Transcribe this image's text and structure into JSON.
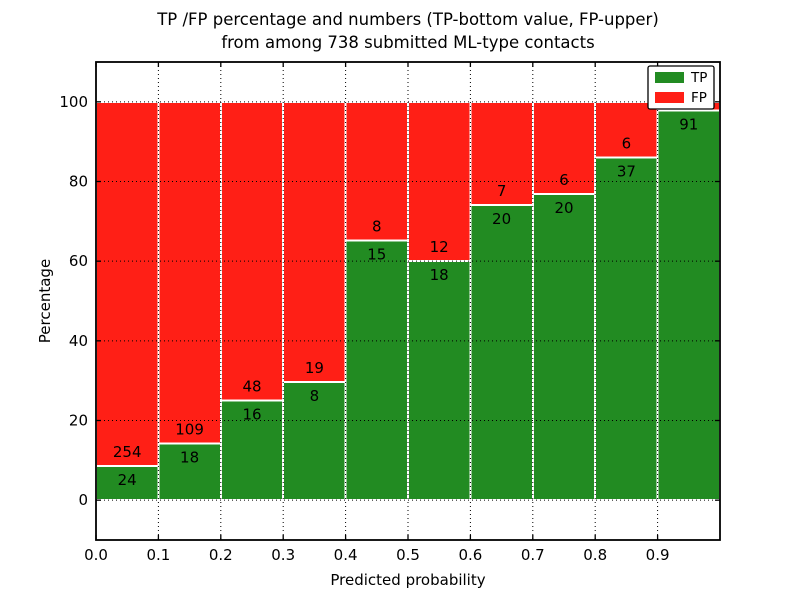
{
  "title": {
    "line1": "TP /FP percentage and numbers (TP-bottom value, FP-upper)",
    "line2": "from among 738 submitted ML-type contacts"
  },
  "chart_data": {
    "type": "bar",
    "stacked": true,
    "title": "TP /FP percentage and numbers (TP-bottom value, FP-upper)\nfrom among 738 submitted ML-type contacts",
    "xlabel": "Predicted probability",
    "ylabel": "Percentage",
    "xlim": [
      0.0,
      1.0
    ],
    "ylim": [
      -10,
      110
    ],
    "xticks": [
      0.0,
      0.1,
      0.2,
      0.3,
      0.4,
      0.5,
      0.6,
      0.7,
      0.8,
      0.9
    ],
    "xtick_labels": [
      "0.0",
      "0.1",
      "0.2",
      "0.3",
      "0.4",
      "0.5",
      "0.6",
      "0.7",
      "0.8",
      "0.9"
    ],
    "yticks": [
      0,
      20,
      40,
      60,
      80,
      100
    ],
    "ytick_labels": [
      "0",
      "20",
      "40",
      "60",
      "80",
      "100"
    ],
    "grid": "dotted",
    "bar_width": 0.1,
    "total_contacts": 738,
    "colors": {
      "tp": "#228b22",
      "fp": "#ff1f16",
      "bar_edge": "#ffffff",
      "grid": "#000000",
      "frame": "#000000",
      "text": "#000000",
      "legend_bg": "#ffffff"
    },
    "legend": {
      "position": "upper-right",
      "entries": [
        {
          "label": "TP",
          "color_key": "tp"
        },
        {
          "label": "FP",
          "color_key": "fp"
        }
      ]
    },
    "bars": [
      {
        "x_start": 0.0,
        "tp": 24,
        "fp": 254
      },
      {
        "x_start": 0.1,
        "tp": 18,
        "fp": 109
      },
      {
        "x_start": 0.2,
        "tp": 16,
        "fp": 48
      },
      {
        "x_start": 0.3,
        "tp": 8,
        "fp": 19
      },
      {
        "x_start": 0.4,
        "tp": 15,
        "fp": 8
      },
      {
        "x_start": 0.5,
        "tp": 18,
        "fp": 12
      },
      {
        "x_start": 0.6,
        "tp": 20,
        "fp": 7
      },
      {
        "x_start": 0.7,
        "tp": 20,
        "fp": 6
      },
      {
        "x_start": 0.8,
        "tp": 37,
        "fp": 6,
        "fp_label_hidden": false
      },
      {
        "x_start": 0.9,
        "tp": 91,
        "fp": 2,
        "fp_label_hidden": true
      }
    ]
  }
}
